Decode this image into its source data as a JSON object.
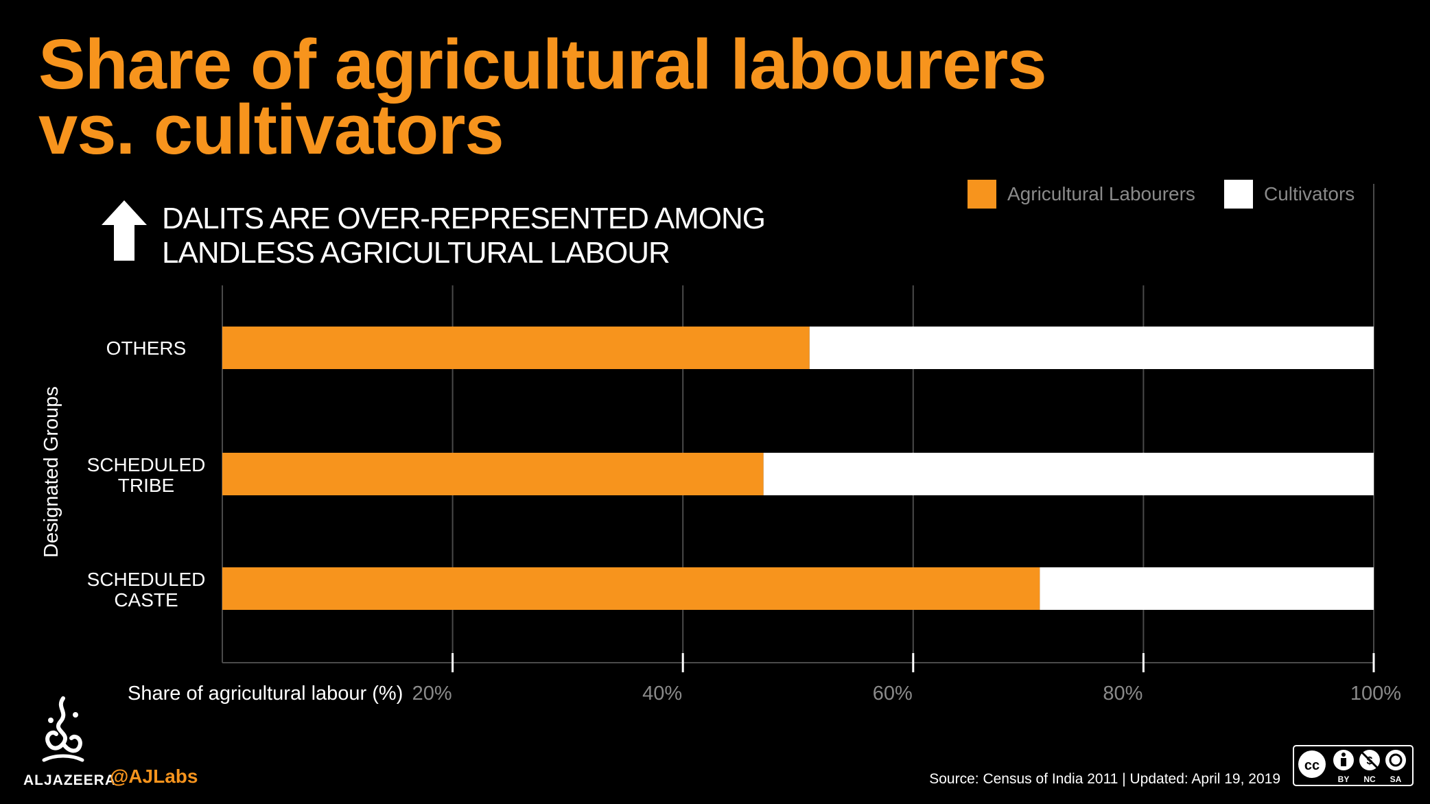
{
  "title_line1": "Share of agricultural labourers",
  "title_line2": "vs. cultivators",
  "subtitle_line1": "DALITS ARE OVER-REPRESENTED AMONG",
  "subtitle_line2": "LANDLESS AGRICULTURAL LABOUR",
  "colors": {
    "accent": "#F7941D",
    "background": "#000000",
    "text": "#FFFFFF",
    "grid": "#4A4A4A",
    "muted": "#8A8A8A"
  },
  "footer": {
    "logo_text": "ALJAZEERA",
    "handle": "@AJLabs",
    "source": "Source: Census of India 2011 |  Updated: April 19, 2019",
    "license_labels": [
      "BY",
      "NC",
      "SA"
    ]
  },
  "chart_data": {
    "type": "bar",
    "orientation": "horizontal",
    "stacked": true,
    "title": "Share of agricultural labourers vs. cultivators",
    "subtitle": "DALITS ARE OVER-REPRESENTED AMONG LANDLESS AGRICULTURAL LABOUR",
    "xlabel": "Share of agricultural labour (%)",
    "ylabel": "Designated Groups",
    "categories": [
      {
        "line1": "OTHERS",
        "line2": ""
      },
      {
        "line1": "SCHEDULED",
        "line2": "TRIBE"
      },
      {
        "line1": "SCHEDULED",
        "line2": "CASTE"
      }
    ],
    "series": [
      {
        "name": "Agricultural Labourers",
        "color": "#F7941D",
        "values": [
          51,
          47,
          71
        ]
      },
      {
        "name": "Cultivators",
        "color": "#FFFFFF",
        "values": [
          49,
          53,
          29
        ]
      }
    ],
    "xlim": [
      0,
      100
    ],
    "x_ticks": [
      20,
      40,
      60,
      80,
      100
    ],
    "x_tick_labels": [
      "20%",
      "40%",
      "60%",
      "80%",
      "100%"
    ],
    "grid": true,
    "legend_position": "top-right"
  }
}
